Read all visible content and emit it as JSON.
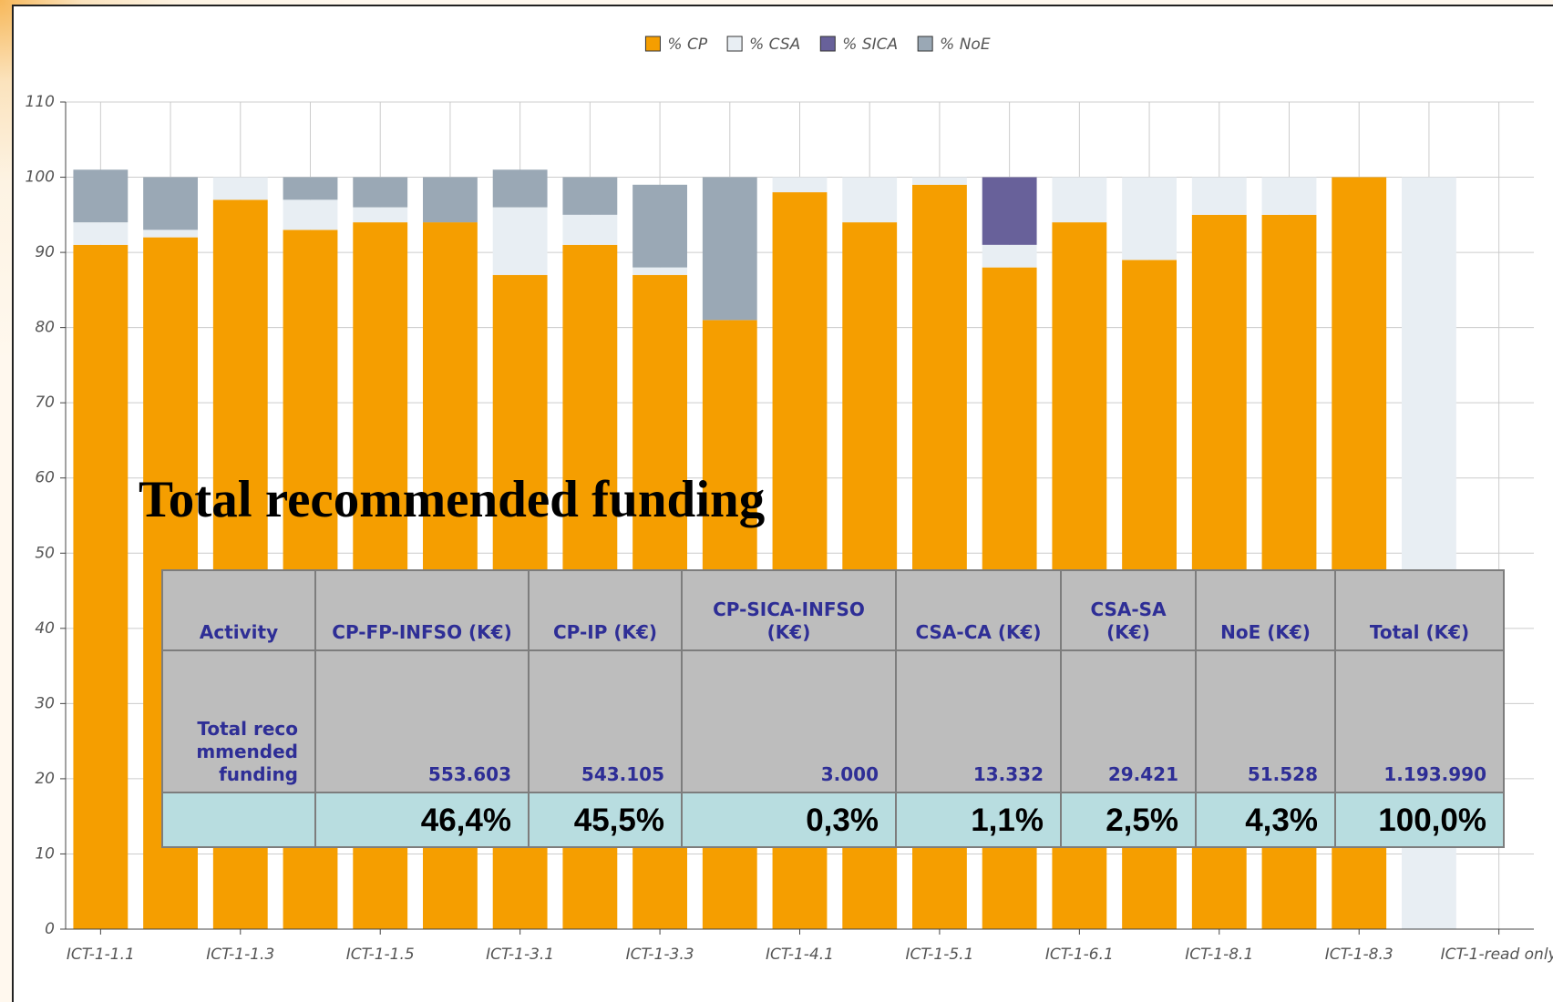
{
  "chart_data": {
    "type": "bar",
    "stacked": true,
    "categories": [
      "ICT-1-1.1",
      null,
      "ICT-1-1.3",
      null,
      "ICT-1-1.5",
      null,
      "ICT-1-3.1",
      null,
      "ICT-1-3.3",
      null,
      "ICT-1-4.1",
      null,
      "ICT-1-5.1",
      null,
      "ICT-1-6.1",
      null,
      "ICT-1-8.1",
      null,
      "ICT-1-8.3",
      null,
      "ICT-1-read only"
    ],
    "series": [
      {
        "name": "% CP",
        "color": "#f59e00",
        "values": [
          91,
          92,
          97,
          93,
          94,
          94,
          87,
          91,
          87,
          81,
          98,
          94,
          99,
          88,
          94,
          89,
          95,
          95,
          100,
          0,
          0
        ]
      },
      {
        "name": "% CSA",
        "color": "#e8eef3",
        "values": [
          3,
          1,
          3,
          4,
          2,
          0,
          9,
          4,
          1,
          0,
          2,
          6,
          1,
          3,
          6,
          11,
          5,
          5,
          0,
          100,
          0
        ]
      },
      {
        "name": "% SICA",
        "color": "#68619a",
        "values": [
          0,
          0,
          0,
          0,
          0,
          0,
          0,
          0,
          0,
          0,
          0,
          0,
          0,
          9,
          0,
          0,
          0,
          0,
          0,
          0,
          0
        ]
      },
      {
        "name": "% NoE",
        "color": "#9aa8b5",
        "values": [
          7,
          7,
          0,
          3,
          4,
          6,
          5,
          5,
          11,
          19,
          0,
          0,
          0,
          0,
          0,
          0,
          0,
          0,
          0,
          0,
          0
        ]
      }
    ],
    "ylim": [
      0,
      110
    ],
    "yticks": [
      0,
      10,
      20,
      30,
      40,
      50,
      60,
      70,
      80,
      90,
      100,
      110
    ],
    "grid": true,
    "legend": "top"
  },
  "heading": "Total recommended funding",
  "table": {
    "header": [
      "Activity",
      "CP-FP-INFSO (K€)",
      "CP-IP (K€)",
      "CP-SICA-INFSO (K€)",
      "CSA-CA (K€)",
      "CSA-SA (K€)",
      "NoE (K€)",
      "Total (K€)"
    ],
    "rows": [
      [
        "Total recommended funding",
        "553.603",
        "543.105",
        "3.000",
        "13.332",
        "29.421",
        "51.528",
        "1.193.990"
      ],
      [
        "46,4%",
        "45,5%",
        "0,3%",
        "1,1%",
        "2,5%",
        "4,3%",
        "100,0%"
      ]
    ]
  }
}
